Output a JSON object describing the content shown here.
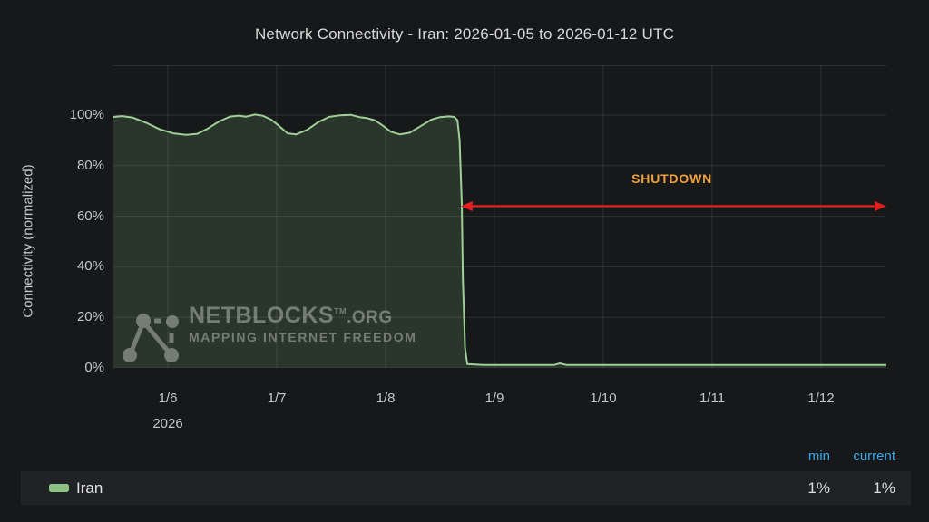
{
  "title": "Network Connectivity - Iran: 2026-01-05 to 2026-01-12 UTC",
  "x_axis": {
    "year_label": "2026"
  },
  "watermark": {
    "brand": "NETBLOCKS",
    "tm": "TM",
    "suffix": ".ORG",
    "tagline": "MAPPING INTERNET FREEDOM"
  },
  "legend": {
    "headers": [
      "min",
      "current"
    ],
    "rows": [
      {
        "name": "Iran",
        "min": "1%",
        "current": "1%"
      }
    ]
  },
  "colors": {
    "background": "#17181a",
    "grid": "rgba(255,255,255,0.10)",
    "line": "#9ecf96",
    "fill": "rgba(134,187,124,0.18)",
    "arrow": "#e32020",
    "annotation_text": "#f0a23c",
    "legend_header": "#3ba9ea",
    "legend_swatch": "#8fc386",
    "axis_text": "#c5c6c8",
    "title_text": "#d8d9da",
    "legend_row_bg": "#212225"
  },
  "chart_data": {
    "type": "area",
    "title": "Network Connectivity - Iran: 2026-01-05 to 2026-01-12 UTC",
    "xlabel": "",
    "ylabel": "Connectivity (normalized)",
    "ylim": [
      0,
      100
    ],
    "x_domain": [
      5.5,
      12.6
    ],
    "x_domain_note": "x is day-of-January-2026, fractional days UTC",
    "grid": true,
    "legend_position": "bottom",
    "y_ticks": [
      {
        "v": 0,
        "label": "0%"
      },
      {
        "v": 20,
        "label": "20%"
      },
      {
        "v": 40,
        "label": "40%"
      },
      {
        "v": 60,
        "label": "60%"
      },
      {
        "v": 80,
        "label": "80%"
      },
      {
        "v": 100,
        "label": "100%"
      }
    ],
    "x_ticks": [
      {
        "t": 6,
        "label": "1/6"
      },
      {
        "t": 7,
        "label": "1/7"
      },
      {
        "t": 8,
        "label": "1/8"
      },
      {
        "t": 9,
        "label": "1/9"
      },
      {
        "t": 10,
        "label": "1/10"
      },
      {
        "t": 11,
        "label": "1/11"
      },
      {
        "t": 12,
        "label": "1/12"
      }
    ],
    "x_year_label": {
      "t": 6,
      "label": "2026"
    },
    "series": [
      {
        "name": "Iran",
        "min": "1%",
        "current": "1%",
        "points": [
          [
            5.5,
            99.3
          ],
          [
            5.58,
            99.6
          ],
          [
            5.68,
            99.0
          ],
          [
            5.8,
            97.0
          ],
          [
            5.92,
            94.5
          ],
          [
            6.05,
            92.8
          ],
          [
            6.17,
            92.2
          ],
          [
            6.27,
            92.6
          ],
          [
            6.36,
            94.5
          ],
          [
            6.47,
            97.5
          ],
          [
            6.57,
            99.4
          ],
          [
            6.65,
            99.8
          ],
          [
            6.72,
            99.4
          ],
          [
            6.8,
            100.2
          ],
          [
            6.87,
            99.8
          ],
          [
            6.95,
            98.2
          ],
          [
            7.02,
            95.8
          ],
          [
            7.1,
            92.8
          ],
          [
            7.18,
            92.4
          ],
          [
            7.28,
            94.2
          ],
          [
            7.38,
            97.2
          ],
          [
            7.48,
            99.3
          ],
          [
            7.58,
            99.9
          ],
          [
            7.68,
            100.1
          ],
          [
            7.76,
            99.2
          ],
          [
            7.83,
            98.8
          ],
          [
            7.9,
            98.0
          ],
          [
            7.97,
            96.0
          ],
          [
            8.05,
            93.4
          ],
          [
            8.13,
            92.4
          ],
          [
            8.22,
            93.0
          ],
          [
            8.32,
            95.6
          ],
          [
            8.42,
            98.2
          ],
          [
            8.5,
            99.2
          ],
          [
            8.58,
            99.5
          ],
          [
            8.63,
            99.3
          ],
          [
            8.66,
            98.0
          ],
          [
            8.68,
            90.0
          ],
          [
            8.7,
            65.0
          ],
          [
            8.71,
            35.0
          ],
          [
            8.73,
            8.0
          ],
          [
            8.75,
            1.5
          ],
          [
            8.9,
            1.2
          ],
          [
            9.3,
            1.2
          ],
          [
            9.55,
            1.2
          ],
          [
            9.6,
            1.8
          ],
          [
            9.66,
            1.2
          ],
          [
            10.3,
            1.2
          ],
          [
            11.2,
            1.2
          ],
          [
            12.0,
            1.2
          ],
          [
            12.6,
            1.2
          ]
        ]
      }
    ],
    "annotations": [
      {
        "type": "double_arrow",
        "label": "SHUTDOWN",
        "t_start": 8.69,
        "t_end": 12.6,
        "v": 64,
        "label_t": 10.63,
        "label_v": 75
      }
    ]
  }
}
